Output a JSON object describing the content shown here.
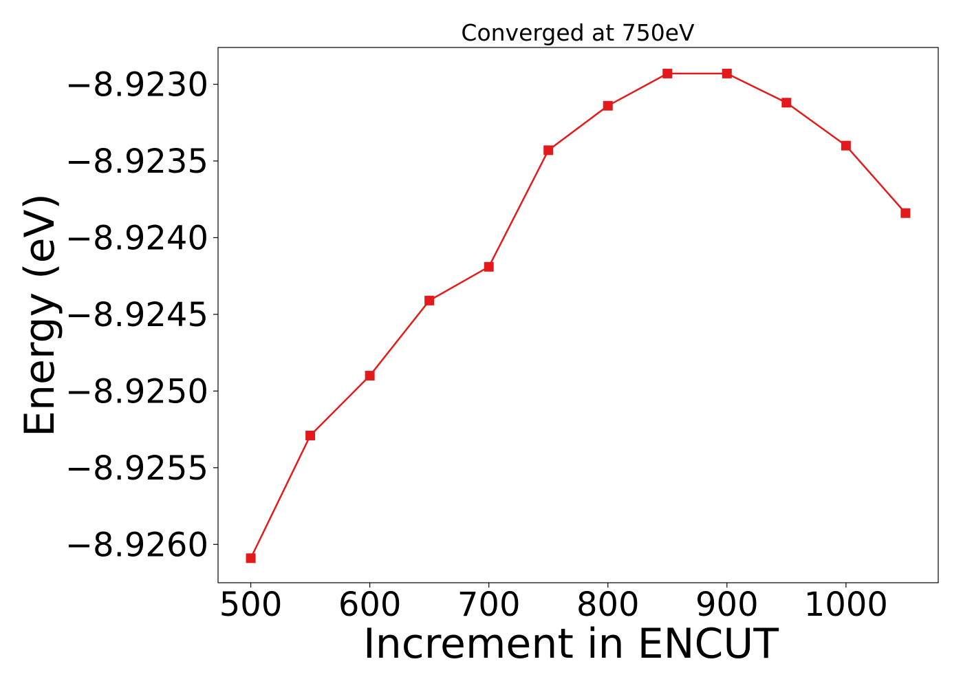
{
  "chart_data": {
    "type": "line",
    "title": "Converged at 750eV",
    "xlabel": "Increment in ENCUT",
    "ylabel": "Energy (eV)",
    "xlim": [
      472.5,
      1077.5
    ],
    "ylim": [
      -8.92625,
      -8.92276
    ],
    "x_ticks": [
      500,
      600,
      700,
      800,
      900,
      1000
    ],
    "x_tick_labels": [
      "500",
      "600",
      "700",
      "800",
      "900",
      "1000"
    ],
    "y_ticks": [
      -8.923,
      -8.9235,
      -8.924,
      -8.9245,
      -8.925,
      -8.9255,
      -8.926
    ],
    "y_tick_labels": [
      "−8.9230",
      "−8.9235",
      "−8.9240",
      "−8.9245",
      "−8.9250",
      "−8.9255",
      "−8.9260"
    ],
    "grid": false,
    "series": [
      {
        "color": "#e31a1c",
        "marker": "square",
        "x": [
          500,
          550,
          600,
          650,
          700,
          750,
          800,
          850,
          900,
          950,
          1000,
          1050
        ],
        "y": [
          -8.92609,
          -8.92529,
          -8.9249,
          -8.92441,
          -8.92419,
          -8.92343,
          -8.92314,
          -8.92293,
          -8.92293,
          -8.92312,
          -8.9234,
          -8.92384
        ]
      }
    ]
  }
}
